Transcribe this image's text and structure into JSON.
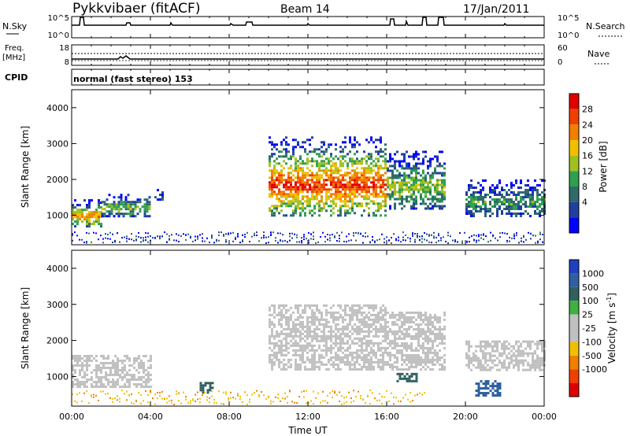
{
  "header": {
    "station": "Pykkvibaer (fitACF)",
    "beam": "Beam 14",
    "date": "17/Jan/2011"
  },
  "strips": {
    "nsky": {
      "label": "N.Sky",
      "ticks": [
        "10^5",
        "10^0"
      ],
      "right_label": "N.Search",
      "right_ticks": [
        "10^5",
        "10^0"
      ]
    },
    "freq": {
      "label_top": "Freq.",
      "label_unit": "[MHz]",
      "ticks": [
        "18",
        "8"
      ],
      "right_label": "Nave",
      "right_ticks": [
        "60",
        "0"
      ]
    },
    "cpid": {
      "label": "CPID",
      "text": "normal (fast stereo) 153"
    }
  },
  "colors": {
    "power_scale": [
      "#0000ff",
      "#2040a0",
      "#306a6a",
      "#30a050",
      "#a0c020",
      "#f0c000",
      "#f08000",
      "#f04000",
      "#e00000"
    ],
    "velocity_scale": [
      "#2040c0",
      "#3060a0",
      "#306060",
      "#40b040",
      "#c0c0c0",
      "#c0c0c0",
      "#f0c000",
      "#f08000",
      "#f04000",
      "#e00000"
    ]
  },
  "chart_data": [
    {
      "type": "heatmap",
      "panel": "power",
      "ylabel": "Slant Range [km]",
      "colorbar_label": "Power [dB]",
      "colorbar_ticks": [
        "28",
        "24",
        "20",
        "16",
        "12",
        "8",
        "4"
      ],
      "yticks": [
        "4000",
        "3000",
        "2000",
        "1000"
      ],
      "ylim": [
        180,
        4500
      ],
      "xlim": [
        0,
        24
      ],
      "regions": [
        {
          "x0": 0.0,
          "x1": 1.5,
          "y0": 700,
          "y1": 1450,
          "level": 24
        },
        {
          "x0": 1.5,
          "x1": 4.0,
          "y0": 1000,
          "y1": 1600,
          "level": 16
        },
        {
          "x0": 4.2,
          "x1": 4.6,
          "y0": 1400,
          "y1": 1800,
          "level": 8
        },
        {
          "x0": 10.0,
          "x1": 16.0,
          "y0": 1000,
          "y1": 3200,
          "level": 28
        },
        {
          "x0": 16.0,
          "x1": 19.0,
          "y0": 1200,
          "y1": 2800,
          "level": 16
        },
        {
          "x0": 20.0,
          "x1": 24.0,
          "y0": 1000,
          "y1": 2000,
          "level": 12
        }
      ]
    },
    {
      "type": "heatmap",
      "panel": "velocity",
      "ylabel": "Slant Range [km]",
      "colorbar_label": "Velocity [m s^-1]",
      "colorbar_ticks": [
        "1000",
        "500",
        "100",
        "25",
        "-25",
        "-100",
        "-500",
        "-1000"
      ],
      "yticks": [
        "4000",
        "3000",
        "2000",
        "1000"
      ],
      "xticks": [
        "00:00",
        "04:00",
        "08:00",
        "12:00",
        "16:00",
        "20:00",
        "00:00"
      ],
      "xlabel": "Time UT",
      "ylim": [
        180,
        4500
      ],
      "xlim": [
        0,
        24
      ],
      "regions": [
        {
          "x0": 0.0,
          "x1": 4.0,
          "y0": 700,
          "y1": 1600,
          "vel": 0
        },
        {
          "x0": 10.0,
          "x1": 16.0,
          "y0": 1200,
          "y1": 3000,
          "vel": 0
        },
        {
          "x0": 16.0,
          "x1": 19.0,
          "y0": 1200,
          "y1": 2800,
          "vel": 0
        },
        {
          "x0": 20.0,
          "x1": 24.0,
          "y0": 1200,
          "y1": 2000,
          "vel": 0
        },
        {
          "x0": 20.5,
          "x1": 21.8,
          "y0": 500,
          "y1": 900,
          "vel": 600
        },
        {
          "x0": 16.5,
          "x1": 17.5,
          "y0": 900,
          "y1": 1100,
          "vel": 150
        },
        {
          "x0": 6.5,
          "x1": 7.2,
          "y0": 550,
          "y1": 850,
          "vel": 150
        }
      ]
    }
  ]
}
